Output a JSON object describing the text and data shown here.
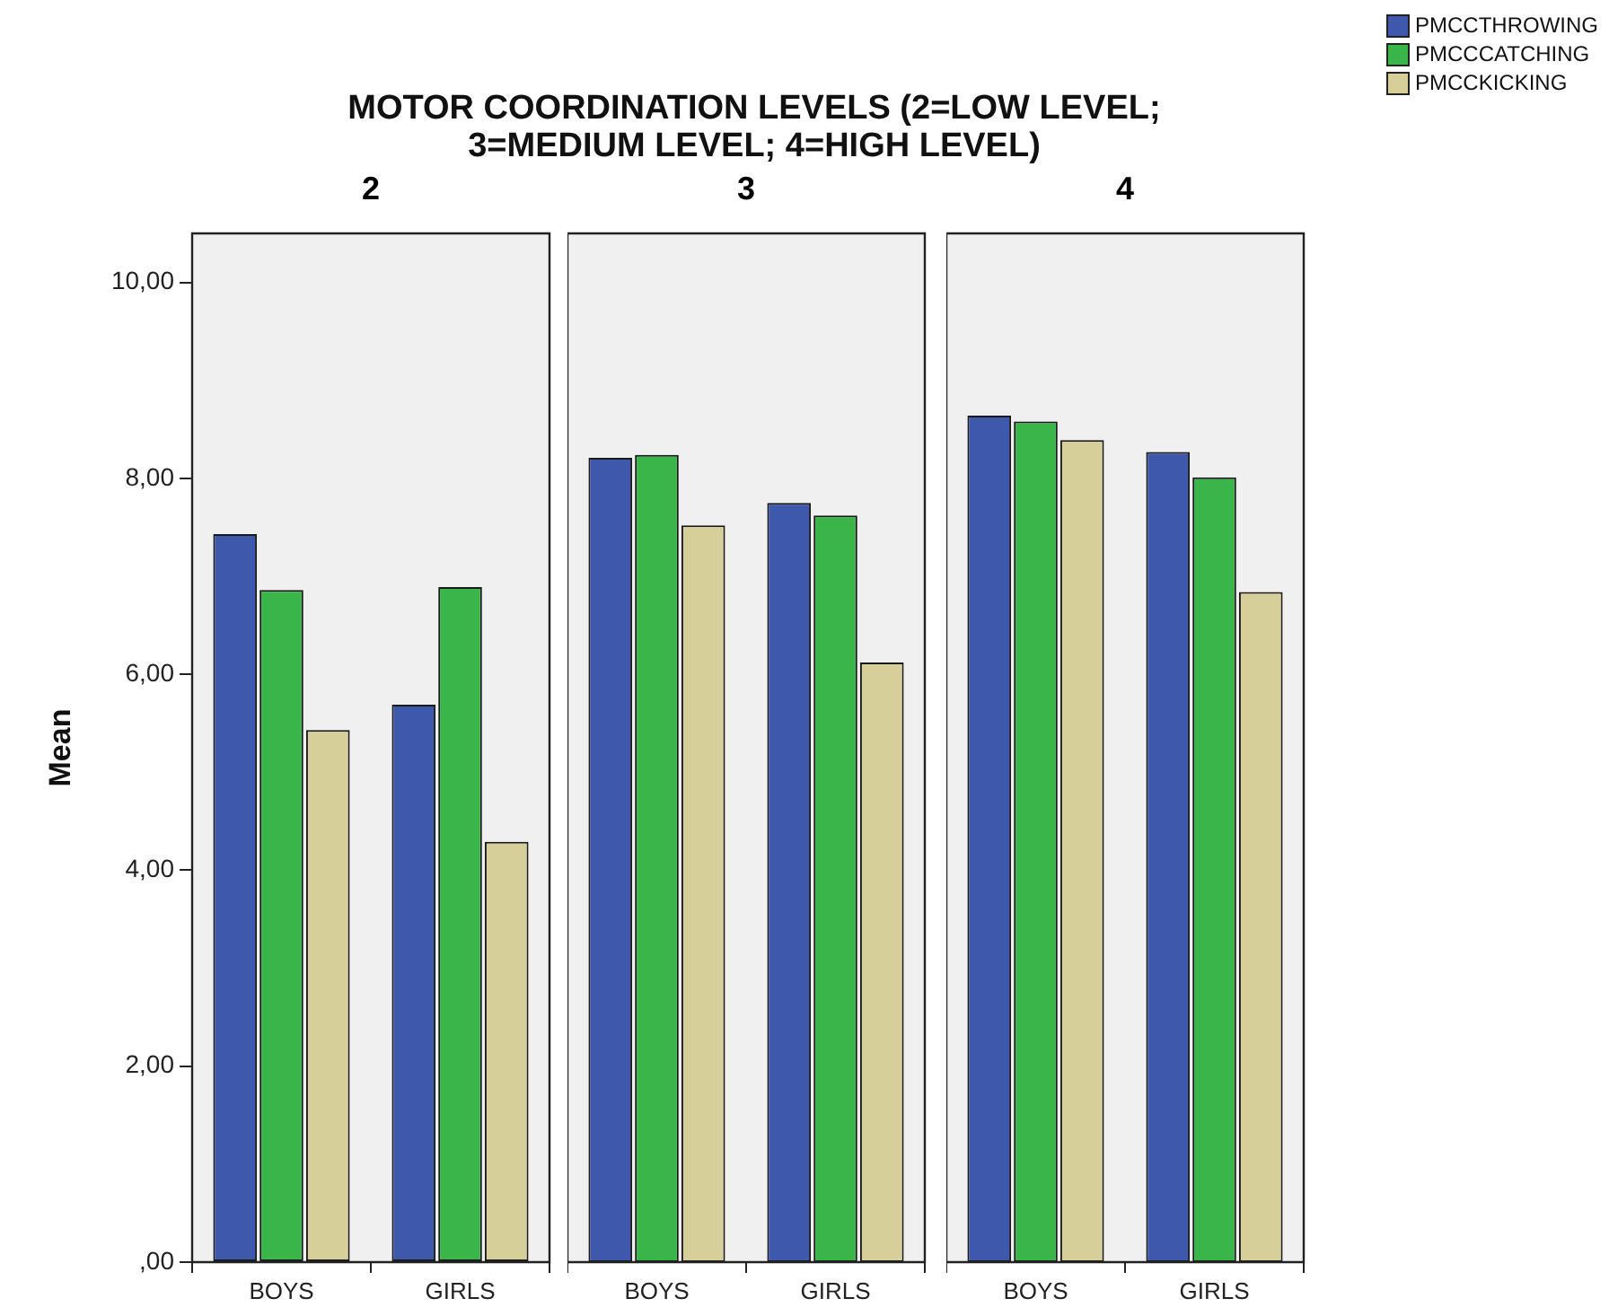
{
  "chart_data": [
    {
      "type": "bar",
      "title": "MOTOR COORDINATION LEVELS (2=LOW LEVEL; 3=MEDIUM LEVEL; 4=HIGH LEVEL)",
      "subtitle": "2",
      "ylabel": "Mean",
      "categories": [
        "BOYS",
        "GIRLS"
      ],
      "ylim": [
        0,
        10.5
      ],
      "yticks": [
        {
          "value": 0,
          "label": ",00"
        },
        {
          "value": 2,
          "label": "2,00"
        },
        {
          "value": 4,
          "label": "4,00"
        },
        {
          "value": 6,
          "label": "6,00"
        },
        {
          "value": 8,
          "label": "8,00"
        },
        {
          "value": 10,
          "label": "10,00"
        }
      ],
      "grid": false,
      "legend": "top right",
      "series": [
        {
          "name": "PMCCTHROWING",
          "color": "#3e58ac",
          "values": [
            7.43,
            5.69
          ]
        },
        {
          "name": "PMCCCATCHING",
          "color": "#3ab54a",
          "values": [
            6.86,
            6.89
          ]
        },
        {
          "name": "PMCCKICKING",
          "color": "#d6cf9a",
          "values": [
            5.43,
            4.29
          ]
        }
      ]
    },
    {
      "type": "bar",
      "subtitle": "3",
      "categories": [
        "BOYS",
        "GIRLS"
      ],
      "ylim": [
        0,
        10.5
      ],
      "tick_labels": "x",
      "grid": false,
      "series": [
        {
          "color": "#3e58ac",
          "values": [
            8.21,
            7.75
          ]
        },
        {
          "color": "#3ab54a",
          "values": [
            8.24,
            7.62
          ]
        },
        {
          "color": "#d6cf9a",
          "values": [
            7.52,
            6.12
          ]
        }
      ]
    },
    {
      "type": "bar",
      "subtitle": "4",
      "categories": [
        "BOYS",
        "GIRLS"
      ],
      "ylim": [
        0,
        10.5
      ],
      "tick_labels": "x",
      "grid": false,
      "series": [
        {
          "color": "#3e58ac",
          "values": [
            8.64,
            8.27
          ]
        },
        {
          "color": "#3ab54a",
          "values": [
            8.58,
            8.01
          ]
        },
        {
          "color": "#d6cf9a",
          "values": [
            8.39,
            6.84
          ]
        }
      ]
    }
  ]
}
